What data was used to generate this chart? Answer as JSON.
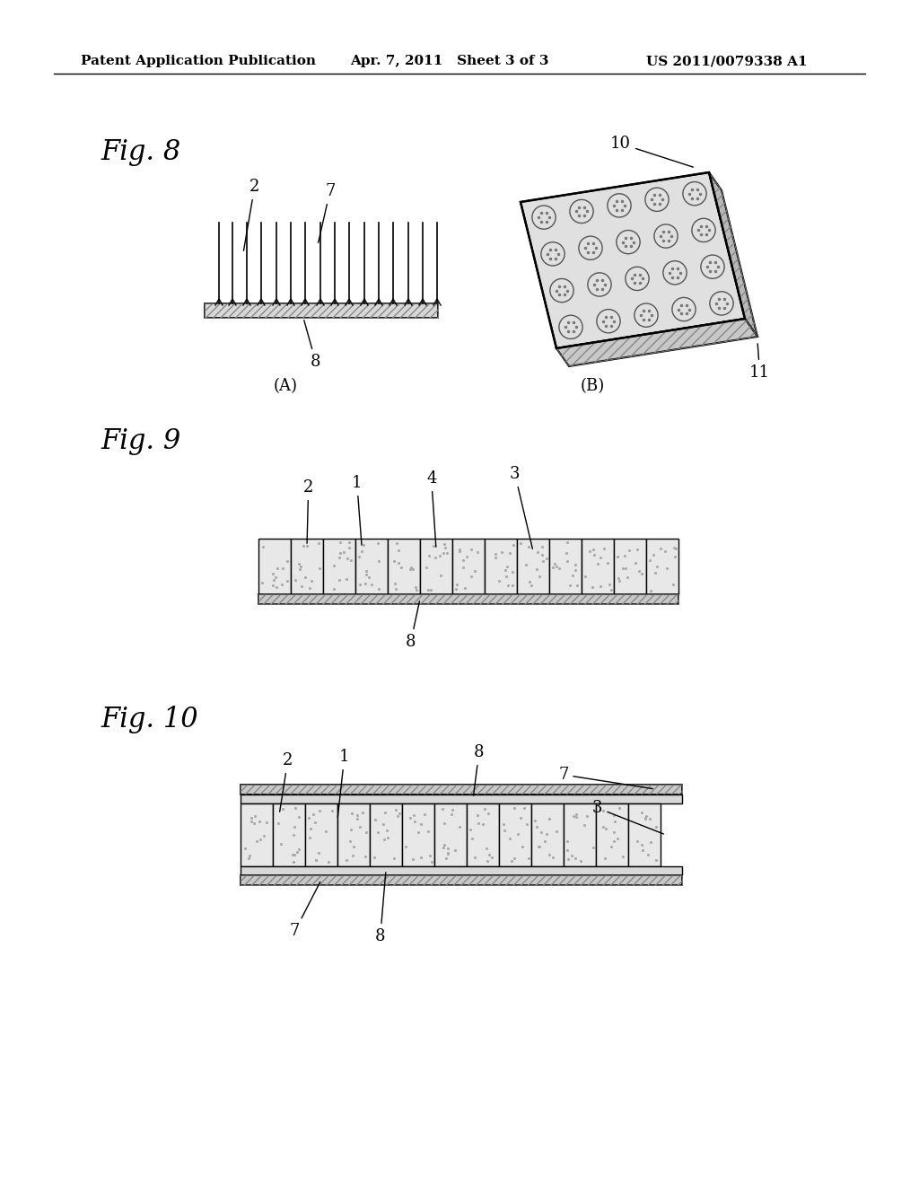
{
  "background_color": "#ffffff",
  "header_left": "Patent Application Publication",
  "header_mid": "Apr. 7, 2011   Sheet 3 of 3",
  "header_right": "US 2011/0079338 A1",
  "fig8_label": "Fig. 8",
  "fig9_label": "Fig. 9",
  "fig10_label": "Fig. 10",
  "fig8A_label": "(A)",
  "fig8B_label": "(B)",
  "text_color": "#000000",
  "line_color": "#000000"
}
